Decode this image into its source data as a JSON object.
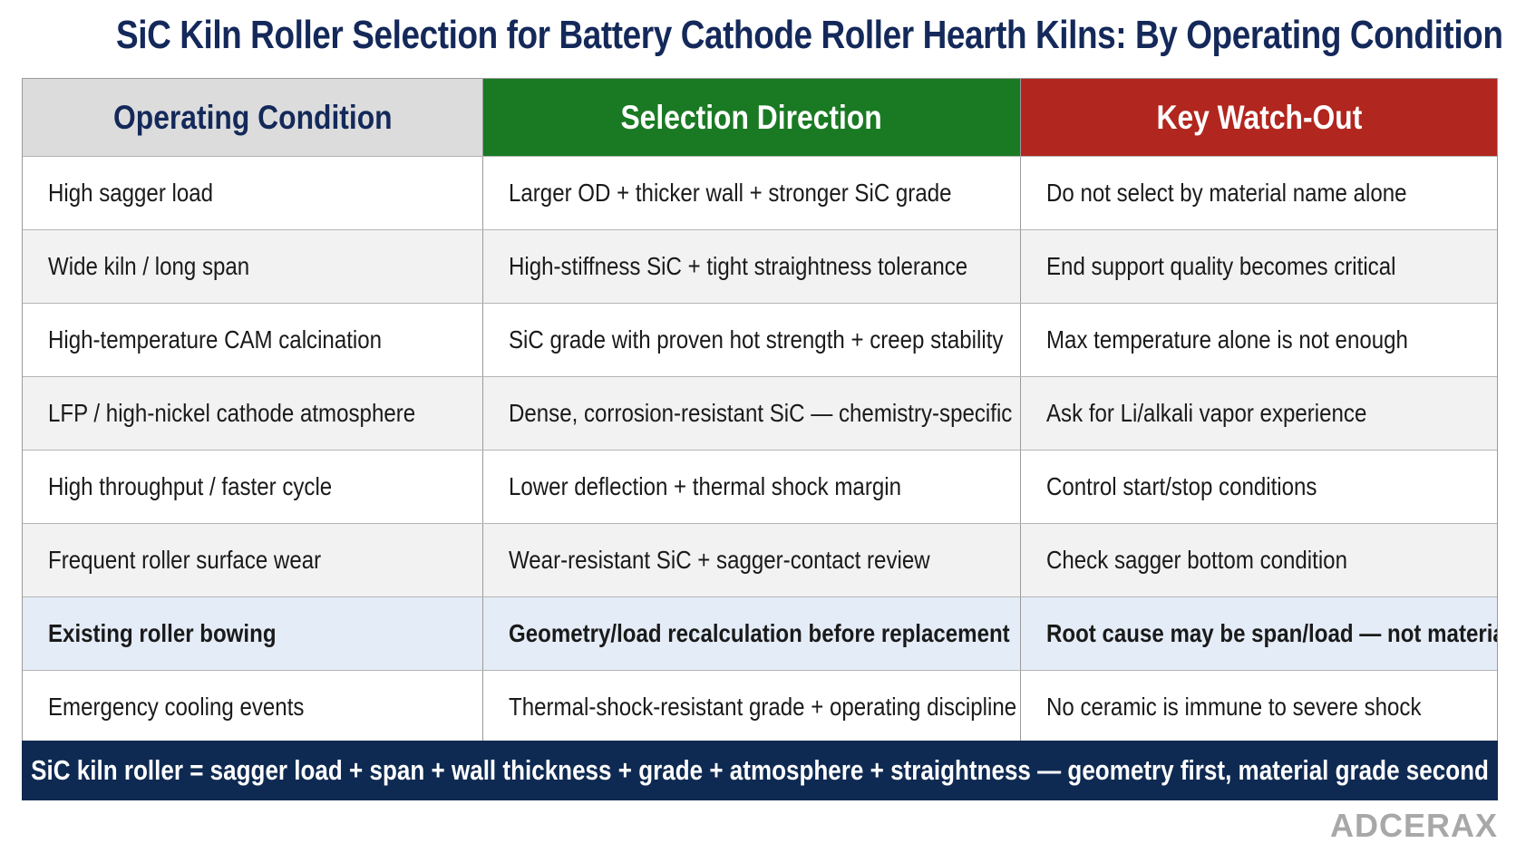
{
  "title": "SiC Kiln Roller Selection for Battery Cathode Roller Hearth Kilns: By Operating Condition",
  "table": {
    "headers": [
      "Operating Condition",
      "Selection Direction",
      "Key Watch-Out"
    ],
    "rows": [
      [
        "High sagger load",
        "Larger OD + thicker wall + stronger SiC grade",
        "Do not select by material name alone"
      ],
      [
        "Wide kiln / long span",
        "High-stiffness SiC + tight straightness tolerance",
        "End support quality becomes critical"
      ],
      [
        "High-temperature CAM calcination",
        "SiC grade with proven hot strength + creep stability",
        "Max temperature alone is not enough"
      ],
      [
        "LFP / high-nickel cathode atmosphere",
        "Dense, corrosion-resistant SiC — chemistry-specific",
        "Ask for Li/alkali vapor experience"
      ],
      [
        "High throughput / faster cycle",
        "Lower deflection + thermal shock margin",
        "Control start/stop conditions"
      ],
      [
        "Frequent roller surface wear",
        "Wear-resistant SiC + sagger-contact review",
        "Check sagger bottom condition"
      ],
      [
        "Existing roller bowing",
        "Geometry/load recalculation before replacement",
        "Root cause may be span/load — not material"
      ],
      [
        "Emergency cooling events",
        "Thermal-shock-resistant grade + operating discipline",
        "No ceramic is immune to severe shock"
      ]
    ]
  },
  "footer": "SiC kiln roller = sagger load + span + wall thickness + grade + atmosphere + straightness — geometry first, material grade second",
  "brand": "ADCERAX",
  "colors": {
    "title": "#14295a",
    "header_condition": "#dcdcdc",
    "header_selection": "#1a7a23",
    "header_watchout": "#b1261e",
    "footer_bg": "#0f2a52",
    "highlight_row": "#e4ecf7"
  }
}
